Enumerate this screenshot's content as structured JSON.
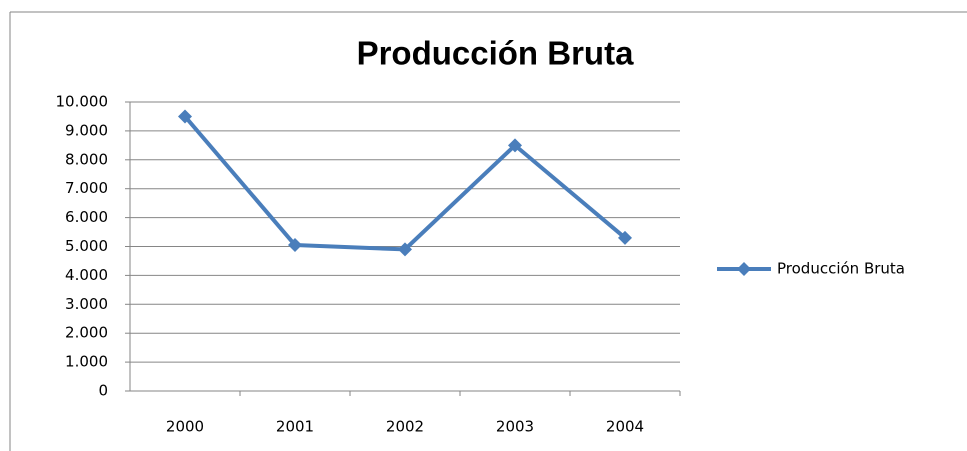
{
  "chart_data": {
    "type": "line",
    "title": "Producción Bruta",
    "categories": [
      "2000",
      "2001",
      "2002",
      "2003",
      "2004"
    ],
    "series": [
      {
        "name": "Producción Bruta",
        "color": "#4a7ebb",
        "values": [
          9500,
          5050,
          4900,
          8500,
          5300
        ]
      }
    ],
    "ylim": [
      0,
      10000
    ],
    "yticks": [
      0,
      {
        "value": 1000,
        "label": "1.000"
      },
      {
        "value": 2000,
        "label": "2.000"
      },
      {
        "value": 3000,
        "label": "3.000"
      },
      {
        "value": 4000,
        "label": "4.000"
      },
      {
        "value": 5000,
        "label": "5.000"
      },
      {
        "value": 6000,
        "label": "6.000"
      },
      {
        "value": 7000,
        "label": "7.000"
      },
      {
        "value": 8000,
        "label": "8.000"
      },
      {
        "value": 9000,
        "label": "9.000"
      },
      {
        "value": 10000,
        "label": "10.000"
      }
    ],
    "grid": true,
    "legend": "right"
  }
}
